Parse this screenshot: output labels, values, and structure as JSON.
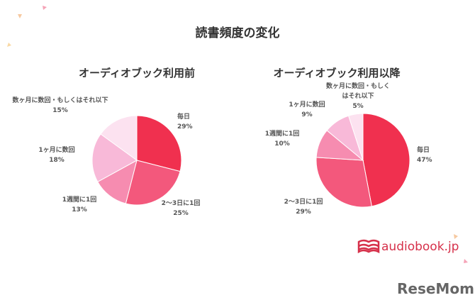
{
  "title": "読書頻度の変化",
  "branding": {
    "logo": "audiobook.jp",
    "watermark": "ReseMom"
  },
  "chart_data": [
    {
      "type": "pie",
      "title": "オーディオブック利用前",
      "categories": [
        "毎日",
        "2〜3日に1回",
        "1週間に1回",
        "1ヶ月に数回",
        "数ヶ月に数回・もしくはそれ以下"
      ],
      "values": [
        29,
        25,
        13,
        18,
        15
      ],
      "value_labels": [
        "29%",
        "25%",
        "13%",
        "18%",
        "15%"
      ],
      "colors": [
        "#f0304f",
        "#f3587c",
        "#f68cb0",
        "#f8b9d8",
        "#fce2f0"
      ]
    },
    {
      "type": "pie",
      "title": "オーディオブック利用以降",
      "categories": [
        "毎日",
        "2〜3日に1回",
        "1週間に1回",
        "1ヶ月に数回",
        "数ヶ月に数回・もしくはそれ以下"
      ],
      "values": [
        47,
        29,
        10,
        9,
        5
      ],
      "value_labels": [
        "47%",
        "29%",
        "10%",
        "9%",
        "5%"
      ],
      "colors": [
        "#f0304f",
        "#f3587c",
        "#f68cb0",
        "#f8b9d8",
        "#fce2f0"
      ]
    }
  ]
}
